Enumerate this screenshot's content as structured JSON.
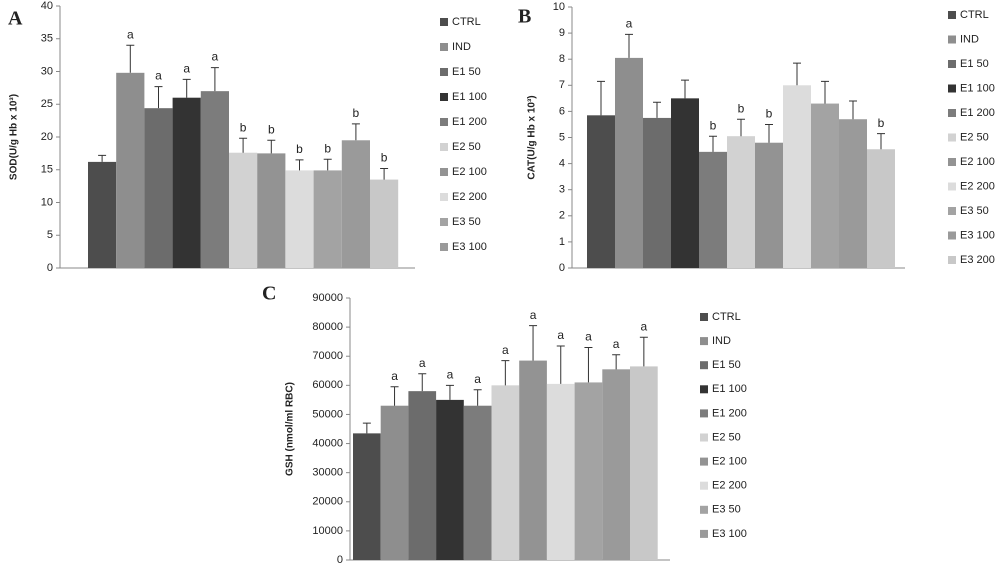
{
  "chart_data": [
    {
      "type": "bar",
      "panel_label": "A",
      "y_label": "SOD(U/g Hb x 10³)",
      "categories": [
        "CTRL",
        "IND",
        "E1 50",
        "E1 100",
        "E1 200",
        "E2 50",
        "E2 100",
        "E2 200",
        "E3 50",
        "E3 100",
        null
      ],
      "values": [
        16.2,
        29.8,
        24.4,
        26,
        27,
        17.6,
        17.5,
        14.9,
        14.9,
        19.5,
        13.5
      ],
      "errors": [
        1,
        4.2,
        3.3,
        2.8,
        3.6,
        2.2,
        2,
        1.6,
        1.7,
        2.5,
        1.7
      ],
      "annotations": [
        null,
        "a",
        "a",
        "a",
        "a",
        "b",
        "b",
        "b",
        "b",
        "b",
        "b"
      ],
      "colors": [
        "#4d4d4d",
        "#8e8e8e",
        "#6c6c6c",
        "#333333",
        "#7c7c7c",
        "#d2d2d2",
        "#939393",
        "#dcdcdc",
        "#a3a3a3",
        "#9a9a9a",
        "#c8c8c8"
      ],
      "ylim": [
        0,
        40
      ],
      "yticks": [
        0,
        5,
        10,
        15,
        20,
        25,
        30,
        35,
        40
      ]
    },
    {
      "type": "bar",
      "panel_label": "B",
      "y_label": "CAT(U/g Hb x 10³)",
      "categories": [
        "CTRL",
        "IND",
        "E1 50",
        "E1 100",
        "E1 200",
        "E2 50",
        "E2 100",
        "E2 200",
        "E3 50",
        "E3 100",
        "E3 200"
      ],
      "values": [
        5.85,
        8.05,
        5.75,
        6.5,
        4.45,
        5.05,
        4.8,
        7.0,
        6.3,
        5.7,
        4.55
      ],
      "errors": [
        1.3,
        0.9,
        0.6,
        0.7,
        0.6,
        0.65,
        0.7,
        0.85,
        0.85,
        0.7,
        0.6
      ],
      "annotations": [
        null,
        "a",
        null,
        null,
        "b",
        "b",
        "b",
        null,
        null,
        null,
        "b"
      ],
      "colors": [
        "#4d4d4d",
        "#8e8e8e",
        "#6c6c6c",
        "#333333",
        "#7c7c7c",
        "#d2d2d2",
        "#939393",
        "#dcdcdc",
        "#a3a3a3",
        "#9a9a9a",
        "#c8c8c8"
      ],
      "ylim": [
        0,
        10
      ],
      "yticks": [
        0,
        1,
        2,
        3,
        4,
        5,
        6,
        7,
        8,
        9,
        10
      ]
    },
    {
      "type": "bar",
      "panel_label": "C",
      "y_label": "GSH (nmol/ml RBC)",
      "categories": [
        "CTRL",
        "IND",
        "E1 50",
        "E1 100",
        "E1 200",
        "E2 50",
        "E2 100",
        "E2 200",
        "E3 50",
        "E3 100",
        null
      ],
      "values": [
        43500,
        53000,
        58000,
        55000,
        53000,
        60000,
        68500,
        60500,
        61000,
        65500,
        66500
      ],
      "errors": [
        3500,
        6500,
        6000,
        5000,
        5500,
        8500,
        12000,
        13000,
        12000,
        5000,
        10000
      ],
      "annotations": [
        null,
        "a",
        "a",
        "a",
        "a",
        "a",
        "a",
        "a",
        "a",
        "a",
        "a"
      ],
      "colors": [
        "#4d4d4d",
        "#8e8e8e",
        "#6c6c6c",
        "#333333",
        "#7c7c7c",
        "#d2d2d2",
        "#939393",
        "#dcdcdc",
        "#a3a3a3",
        "#9a9a9a",
        "#c8c8c8"
      ],
      "ylim": [
        0,
        90000
      ],
      "yticks": [
        0,
        10000,
        20000,
        30000,
        40000,
        50000,
        60000,
        70000,
        80000,
        90000
      ]
    }
  ]
}
